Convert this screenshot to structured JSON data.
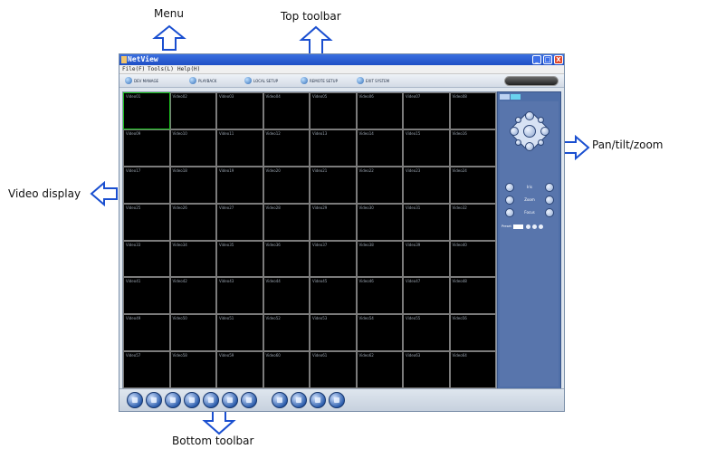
{
  "annotations": {
    "menu": "Menu",
    "top_toolbar": "Top toolbar",
    "ptz": "Pan/tilt/zoom",
    "video_display": "Video display",
    "bottom_toolbar": "Bottom toolbar"
  },
  "window": {
    "title": "NetView",
    "buttons": {
      "minimize": "_",
      "maximize": "□",
      "close": "X"
    }
  },
  "menubar": {
    "items": [
      "File(F)",
      "Tools(L)",
      "Help(H)"
    ]
  },
  "toolbar": {
    "items": [
      {
        "label": "DEV MANAGE",
        "icon": "device-icon"
      },
      {
        "label": "PLAYBACK",
        "icon": "playback-icon"
      },
      {
        "label": "LOCAL SETUP",
        "icon": "local-setup-icon"
      },
      {
        "label": "REMOTE SETUP",
        "icon": "remote-setup-icon"
      },
      {
        "label": "EXIT SYSTEM",
        "icon": "exit-icon"
      }
    ]
  },
  "video_grid": {
    "labels": [
      "Video01",
      "Video02",
      "Video03",
      "Video04",
      "Video05",
      "Video06",
      "Video07",
      "Video08",
      "Video09",
      "Video10",
      "Video11",
      "Video12",
      "Video13",
      "Video14",
      "Video15",
      "Video16",
      "Video17",
      "Video18",
      "Video19",
      "Video20",
      "Video21",
      "Video22",
      "Video23",
      "Video24",
      "Video25",
      "Video26",
      "Video27",
      "Video28",
      "Video29",
      "Video30",
      "Video31",
      "Video32",
      "Video33",
      "Video34",
      "Video35",
      "Video36",
      "Video37",
      "Video38",
      "Video39",
      "Video40",
      "Video41",
      "Video42",
      "Video43",
      "Video44",
      "Video45",
      "Video46",
      "Video47",
      "Video48",
      "Video49",
      "Video50",
      "Video51",
      "Video52",
      "Video53",
      "Video54",
      "Video55",
      "Video56",
      "Video57",
      "Video58",
      "Video59",
      "Video60",
      "Video61",
      "Video62",
      "Video63",
      "Video64"
    ],
    "selected_index": 0
  },
  "ptz": {
    "controls": {
      "iris": "Iris",
      "zoom": "Zoom",
      "focus": "Focus"
    },
    "preset_label": "Preset"
  },
  "bottom_toolbar": {
    "button_count": 11
  },
  "colors": {
    "titlebar": "#1f4fc4",
    "ptz_panel": "#4f6fa8",
    "selected_cell_border": "#19c11d",
    "bottom_buttons": "#2e5fae"
  }
}
